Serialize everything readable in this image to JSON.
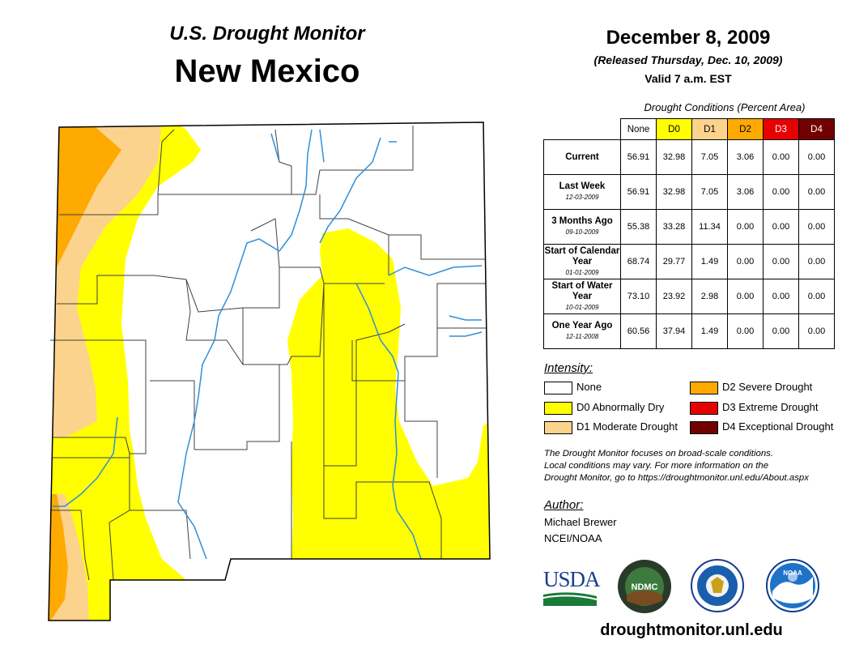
{
  "header": {
    "subtitle": "U.S. Drought Monitor",
    "state": "New Mexico",
    "date": "December 8, 2009",
    "released": "(Released Thursday, Dec. 10, 2009)",
    "valid": "Valid 7 a.m. EST"
  },
  "conditions": {
    "caption": "Drought Conditions (Percent Area)",
    "columns": [
      "None",
      "D0",
      "D1",
      "D2",
      "D3",
      "D4"
    ],
    "rows": [
      {
        "label": "Current",
        "date": "",
        "values": [
          "56.91",
          "32.98",
          "7.05",
          "3.06",
          "0.00",
          "0.00"
        ]
      },
      {
        "label": "Last Week",
        "date": "12-03-2009",
        "values": [
          "56.91",
          "32.98",
          "7.05",
          "3.06",
          "0.00",
          "0.00"
        ]
      },
      {
        "label": "3 Months Ago",
        "date": "09-10-2009",
        "values": [
          "55.38",
          "33.28",
          "11.34",
          "0.00",
          "0.00",
          "0.00"
        ]
      },
      {
        "label": "Start of Calendar Year",
        "date": "01-01-2009",
        "values": [
          "68.74",
          "29.77",
          "1.49",
          "0.00",
          "0.00",
          "0.00"
        ]
      },
      {
        "label": "Start of Water Year",
        "date": "10-01-2009",
        "values": [
          "73.10",
          "23.92",
          "2.98",
          "0.00",
          "0.00",
          "0.00"
        ]
      },
      {
        "label": "One Year Ago",
        "date": "12-11-2008",
        "values": [
          "60.56",
          "37.94",
          "1.49",
          "0.00",
          "0.00",
          "0.00"
        ]
      }
    ]
  },
  "legend": {
    "title": "Intensity:",
    "items": [
      {
        "label": "None",
        "color": "#ffffff"
      },
      {
        "label": "D0 Abnormally Dry",
        "color": "#ffff00"
      },
      {
        "label": "D1 Moderate Drought",
        "color": "#fcd38d"
      },
      {
        "label": "D2 Severe Drought",
        "color": "#ffaa00"
      },
      {
        "label": "D3 Extreme Drought",
        "color": "#e60000"
      },
      {
        "label": "D4 Exceptional Drought",
        "color": "#730000"
      }
    ]
  },
  "note": {
    "line1": "The Drought Monitor focuses on broad-scale conditions.",
    "line2": "Local conditions may vary. For more information on the",
    "line3": "Drought Monitor, go to https://droughtmonitor.unl.edu/About.aspx"
  },
  "author": {
    "label": "Author:",
    "name": "Michael Brewer",
    "org": "NCEI/NOAA"
  },
  "logos": {
    "usda": "USDA",
    "ndmc": "NDMC",
    "noaa": "NOAA"
  },
  "footer": {
    "site": "droughtmonitor.unl.edu"
  }
}
